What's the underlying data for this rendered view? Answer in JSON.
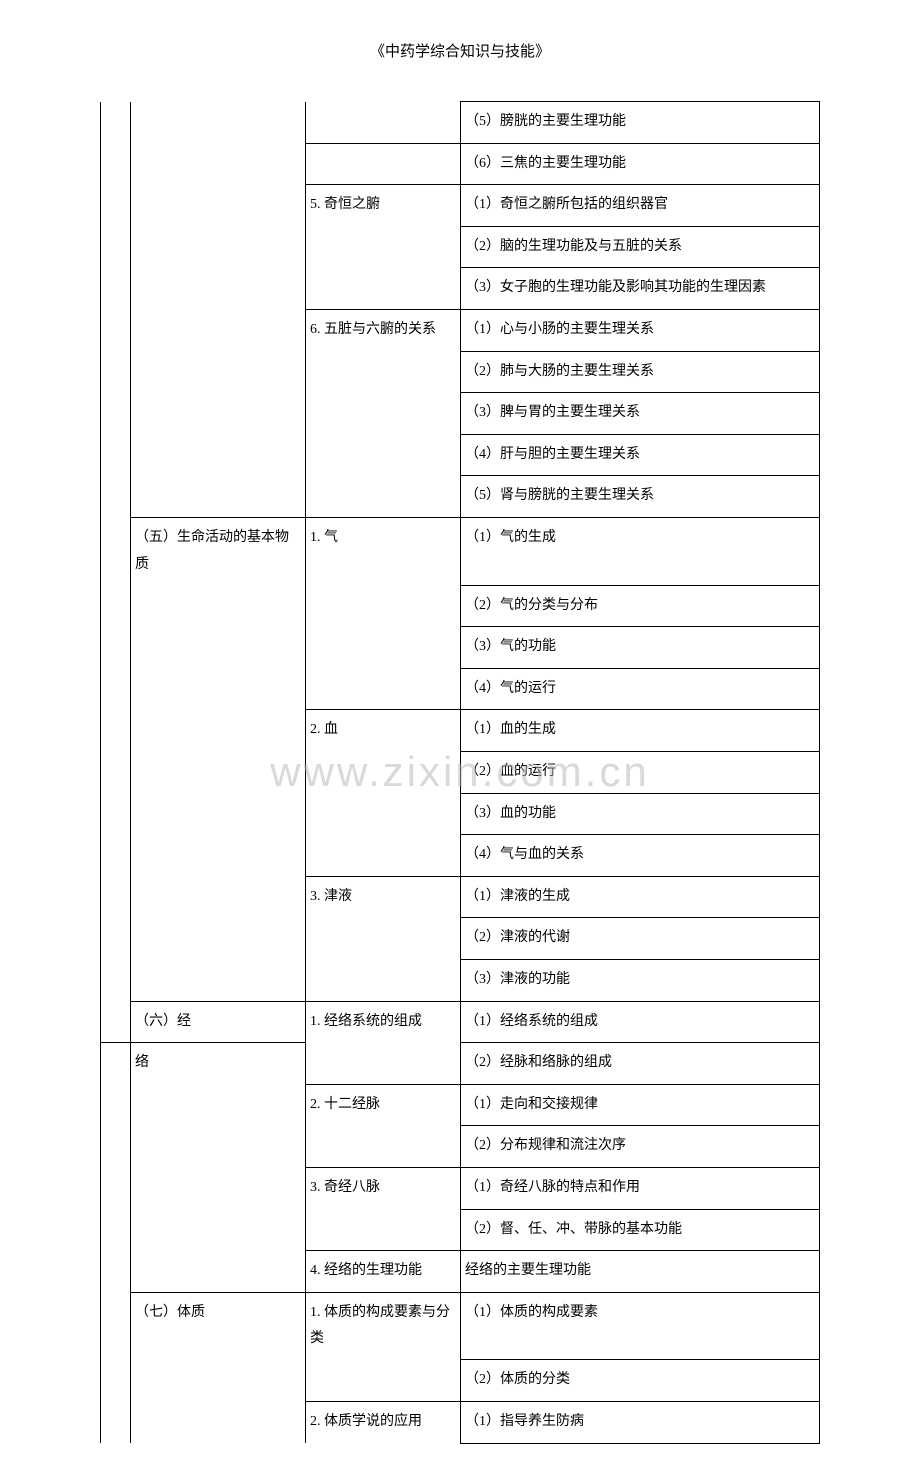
{
  "title": "《中药学综合知识与技能》",
  "watermark": "www.zixin.com.cn",
  "rows": [
    {
      "c1": "",
      "c2": "",
      "c3": "",
      "c4": "（5）膀胱的主要生理功能",
      "c1_border": "none-top none-bottom",
      "c2_border": "none-top none-bottom",
      "c3_border": "none-top none-bottom"
    },
    {
      "c1": "",
      "c2": "",
      "c3": "",
      "c4": "（6）三焦的主要生理功能",
      "c1_border": "none-top none-bottom",
      "c2_border": "none-top none-bottom",
      "c3_border": "none-bottom"
    },
    {
      "c1": "",
      "c2": "",
      "c3": "5. 奇恒之腑",
      "c4": "（1）奇恒之腑所包括的组织器官",
      "c1_border": "none-top none-bottom",
      "c2_border": "none-top none-bottom",
      "c3_border": "none-bottom"
    },
    {
      "c1": "",
      "c2": "",
      "c3": "",
      "c4": "（2）脑的生理功能及与五脏的关系",
      "c1_border": "none-top none-bottom",
      "c2_border": "none-top none-bottom",
      "c3_border": "none-top none-bottom"
    },
    {
      "c1": "",
      "c2": "",
      "c3": "",
      "c4": "（3）女子胞的生理功能及影响其功能的生理因素",
      "c1_border": "none-top none-bottom",
      "c2_border": "none-top none-bottom",
      "c3_border": "none-top none-bottom"
    },
    {
      "c1": "",
      "c2": "",
      "c3": "6. 五脏与六腑的关系",
      "c4": "（1）心与小肠的主要生理关系",
      "c1_border": "none-top none-bottom",
      "c2_border": "none-top none-bottom",
      "c3_border": "none-bottom"
    },
    {
      "c1": "",
      "c2": "",
      "c3": "",
      "c4": "（2）肺与大肠的主要生理关系",
      "c1_border": "none-top none-bottom",
      "c2_border": "none-top none-bottom",
      "c3_border": "none-top none-bottom"
    },
    {
      "c1": "",
      "c2": "",
      "c3": "",
      "c4": "（3）脾与胃的主要生理关系",
      "c1_border": "none-top none-bottom",
      "c2_border": "none-top none-bottom",
      "c3_border": "none-top none-bottom"
    },
    {
      "c1": "",
      "c2": "",
      "c3": "",
      "c4": "（4）肝与胆的主要生理关系",
      "c1_border": "none-top none-bottom",
      "c2_border": "none-top none-bottom",
      "c3_border": "none-top none-bottom"
    },
    {
      "c1": "",
      "c2": "",
      "c3": "",
      "c4": "（5）肾与膀胱的主要生理关系",
      "c1_border": "none-top none-bottom",
      "c2_border": "none-top none-bottom",
      "c3_border": "none-top"
    },
    {
      "c1": "",
      "c2": "（五）生命活动的基本物质",
      "c3": "1. 气",
      "c4": "（1）气的生成",
      "c1_border": "none-top none-bottom",
      "c2_border": "none-bottom",
      "c3_border": "none-bottom"
    },
    {
      "c1": "",
      "c2": "",
      "c3": "",
      "c4": "（2）气的分类与分布",
      "c1_border": "none-top none-bottom",
      "c2_border": "none-top none-bottom",
      "c3_border": "none-top none-bottom"
    },
    {
      "c1": "",
      "c2": "",
      "c3": "",
      "c4": "（3）气的功能",
      "c1_border": "none-top none-bottom",
      "c2_border": "none-top none-bottom",
      "c3_border": "none-top none-bottom"
    },
    {
      "c1": "",
      "c2": "",
      "c3": "",
      "c4": "（4）气的运行",
      "c1_border": "none-top none-bottom",
      "c2_border": "none-top none-bottom",
      "c3_border": "none-top none-bottom"
    },
    {
      "c1": "",
      "c2": "",
      "c3": "2. 血",
      "c4": "（1）血的生成",
      "c1_border": "none-top none-bottom",
      "c2_border": "none-top none-bottom",
      "c3_border": "none-bottom"
    },
    {
      "c1": "",
      "c2": "",
      "c3": "",
      "c4": "（2）血的运行",
      "c1_border": "none-top none-bottom",
      "c2_border": "none-top none-bottom",
      "c3_border": "none-top none-bottom"
    },
    {
      "c1": "",
      "c2": "",
      "c3": "",
      "c4": "（3）血的功能",
      "c1_border": "none-top none-bottom",
      "c2_border": "none-top none-bottom",
      "c3_border": "none-top none-bottom"
    },
    {
      "c1": "",
      "c2": "",
      "c3": "",
      "c4": "（4）气与血的关系",
      "c1_border": "none-top none-bottom",
      "c2_border": "none-top none-bottom",
      "c3_border": "none-top none-bottom"
    },
    {
      "c1": "",
      "c2": "",
      "c3": "3. 津液",
      "c4": "（1）津液的生成",
      "c1_border": "none-top none-bottom",
      "c2_border": "none-top none-bottom",
      "c3_border": "none-bottom"
    },
    {
      "c1": "",
      "c2": "",
      "c3": "",
      "c4": "（2）津液的代谢",
      "c1_border": "none-top none-bottom",
      "c2_border": "none-top none-bottom",
      "c3_border": "none-top none-bottom"
    },
    {
      "c1": "",
      "c2": "",
      "c3": "",
      "c4": "（3）津液的功能",
      "c1_border": "none-top none-bottom",
      "c2_border": "none-top none-bottom",
      "c3_border": "none-top"
    },
    {
      "c1": "",
      "c2": "（六）经",
      "c3": "1. 经络系统的组成",
      "c4": "（1）经络系统的组成",
      "c1_border": "none-top",
      "c2_border": "",
      "c3_border": "none-bottom"
    },
    {
      "c1": "",
      "c2": "络",
      "c3": "",
      "c4": "（2）经脉和络脉的组成",
      "c1_border": "none-bottom",
      "c2_border": "none-bottom",
      "c3_border": "none-top none-bottom"
    },
    {
      "c1": "",
      "c2": "",
      "c3": "2. 十二经脉",
      "c4": "（1）走向和交接规律",
      "c1_border": "none-top none-bottom",
      "c2_border": "none-top none-bottom",
      "c3_border": "none-bottom"
    },
    {
      "c1": "",
      "c2": "",
      "c3": "",
      "c4": "（2）分布规律和流注次序",
      "c1_border": "none-top none-bottom",
      "c2_border": "none-top none-bottom",
      "c3_border": "none-top none-bottom"
    },
    {
      "c1": "",
      "c2": "",
      "c3": "3. 奇经八脉",
      "c4": "（1）奇经八脉的特点和作用",
      "c1_border": "none-top none-bottom",
      "c2_border": "none-top none-bottom",
      "c3_border": "none-bottom"
    },
    {
      "c1": "",
      "c2": "",
      "c3": "",
      "c4": "（2）督、任、冲、带脉的基本功能",
      "c1_border": "none-top none-bottom",
      "c2_border": "none-top none-bottom",
      "c3_border": "none-top none-bottom"
    },
    {
      "c1": "",
      "c2": "",
      "c3": "4. 经络的生理功能",
      "c4": "经络的主要生理功能",
      "c1_border": "none-top none-bottom",
      "c2_border": "none-top none-bottom",
      "c3_border": ""
    },
    {
      "c1": "",
      "c2": "（七）体质",
      "c3": "1. 体质的构成要素与分类",
      "c4": "（1）体质的构成要素",
      "c1_border": "none-top none-bottom",
      "c2_border": "none-bottom",
      "c3_border": "none-bottom"
    },
    {
      "c1": "",
      "c2": "",
      "c3": "",
      "c4": "（2）体质的分类",
      "c1_border": "none-top none-bottom",
      "c2_border": "none-top none-bottom",
      "c3_border": "none-top"
    },
    {
      "c1": "",
      "c2": "",
      "c3": "2. 体质学说的应用",
      "c4": "（1）指导养生防病",
      "c1_border": "none-top none-bottom",
      "c2_border": "none-top none-bottom",
      "c3_border": "none-bottom"
    }
  ]
}
